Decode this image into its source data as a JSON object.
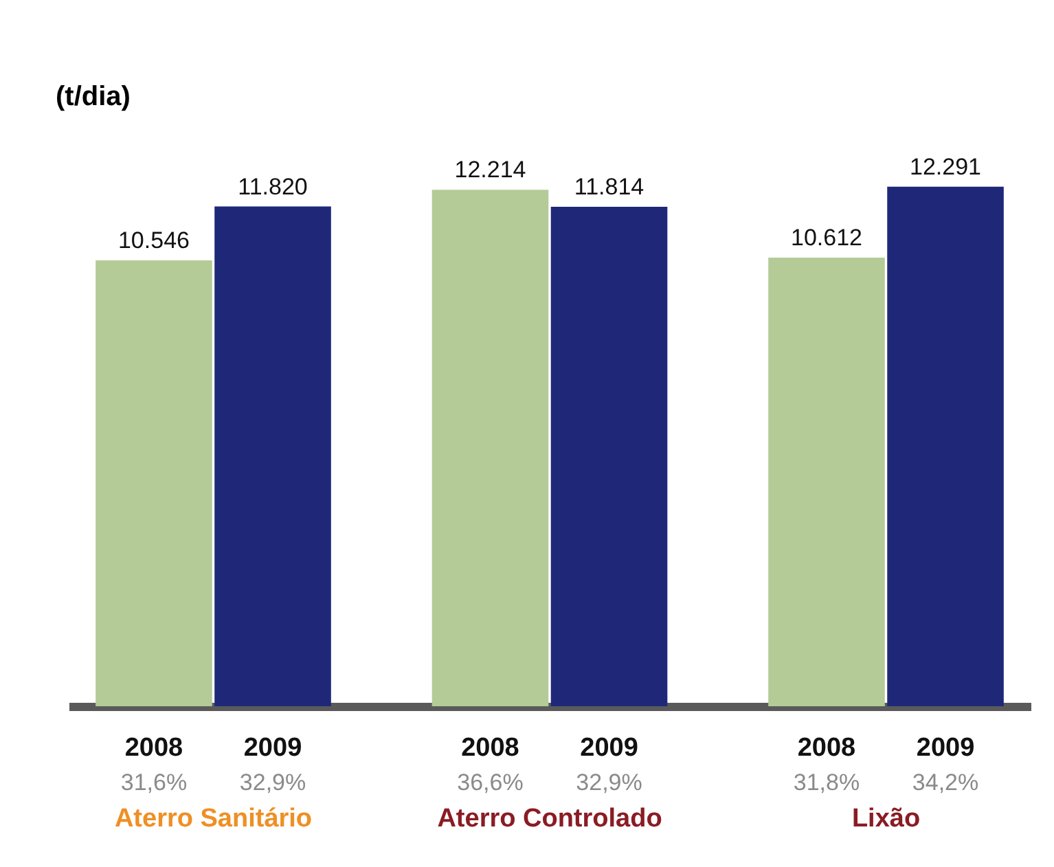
{
  "chart_data": {
    "type": "bar",
    "ylabel": "(t/dia)",
    "categories": [
      "Aterro Sanitário",
      "Aterro Controlado",
      "Lixão"
    ],
    "series": [
      {
        "name": "2008",
        "color": "#b4cb98",
        "values": [
          10546,
          12214,
          10612
        ],
        "value_labels": [
          "10.546",
          "12.214",
          "10.612"
        ]
      },
      {
        "name": "2009",
        "color": "#1f2878",
        "values": [
          11820,
          11814,
          12291
        ],
        "value_labels": [
          "11.820",
          "11.814",
          "12.291"
        ]
      }
    ],
    "tick_labels": "x",
    "data_labels": true,
    "grid": false,
    "legend": false,
    "annotations": [
      "31,6%",
      "32,9%",
      "36,6%",
      "32,9%",
      "31,8%",
      "34,2%"
    ]
  }
}
